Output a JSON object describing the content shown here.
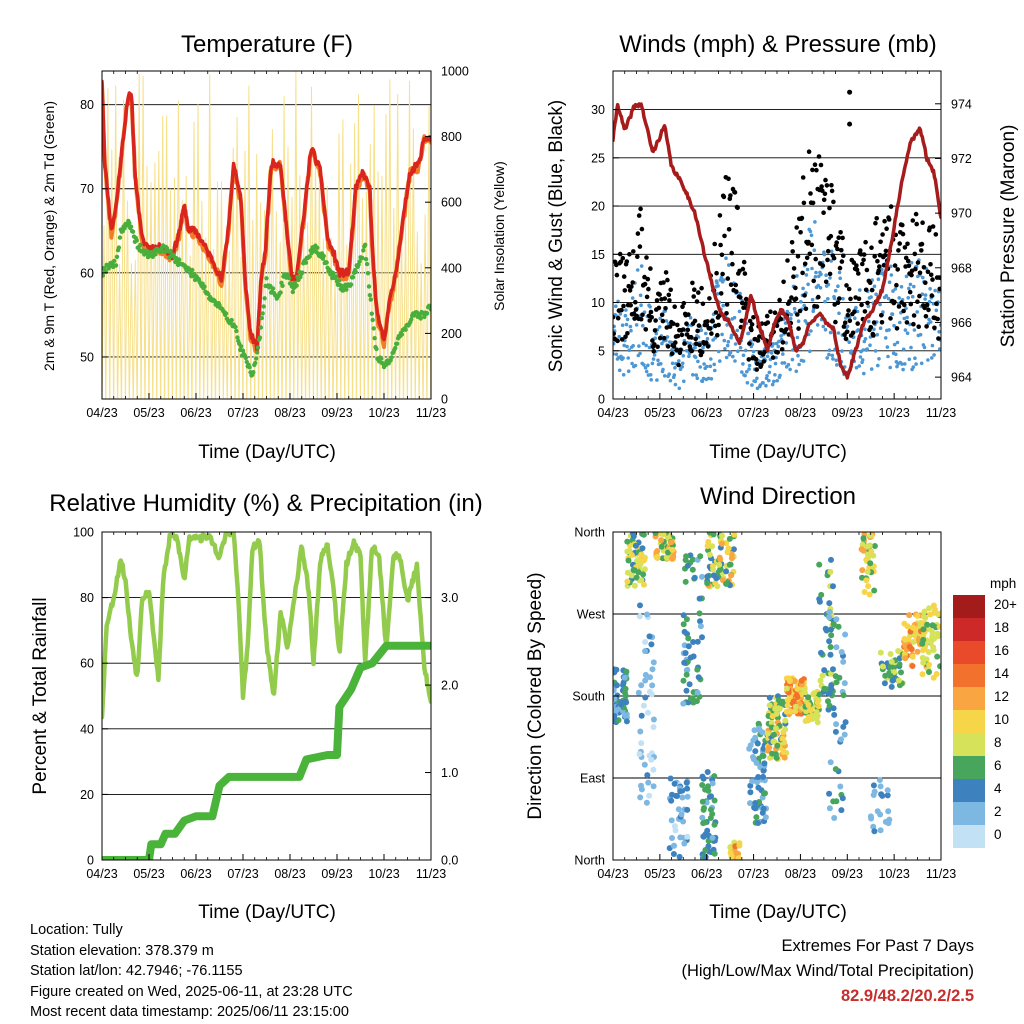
{
  "colors": {
    "temp_2m": "#d9251d",
    "temp_9m": "#f07d28",
    "dewpoint": "#49ae3b",
    "solar": "#f7e08a",
    "gust": "#000000",
    "wind": "#4d97d4",
    "pressure": "#a61c1c",
    "rh": "#93cb4c",
    "rain": "#4ab43a"
  },
  "panels": {
    "temperature": {
      "title": "Temperature (F)",
      "ylabel_left": "2m & 9m T (Red, Orange) & 2m Td (Green)",
      "ylabel_right": "Solar Insolation (Yellow)",
      "xlabel": "Time (Day/UTC)"
    },
    "winds": {
      "title": "Winds (mph) & Pressure (mb)",
      "ylabel_left": "Sonic Wind & Gust (Blue, Black)",
      "ylabel_right": "Station Pressure (Maroon)",
      "xlabel": "Time (Day/UTC)"
    },
    "humidity": {
      "title": "Relative Humidity (%) & Precipitation (in)",
      "ylabel_left": "Percent & Total Rainfall",
      "xlabel": "Time (Day/UTC)"
    },
    "direction": {
      "title": "Wind Direction",
      "ylabel_left": "Direction (Colored By Speed)",
      "xlabel": "Time (Day/UTC)"
    }
  },
  "chart_data": [
    {
      "id": "temperature",
      "type": "line",
      "x_ticks": [
        "04/23",
        "05/23",
        "06/23",
        "07/23",
        "08/23",
        "09/23",
        "10/23",
        "11/23"
      ],
      "xlim": [
        0,
        7
      ],
      "ylim": [
        45,
        84
      ],
      "y_ticks": [
        50,
        60,
        70,
        80
      ],
      "y2lim": [
        0,
        1000
      ],
      "y2_ticks": [
        0,
        200,
        400,
        600,
        800,
        1000
      ],
      "series": [
        {
          "key": "temp_2m",
          "axis": "left",
          "points": [
            [
              0,
              83
            ],
            [
              0.06,
              73
            ],
            [
              0.2,
              65
            ],
            [
              0.3,
              68
            ],
            [
              0.45,
              76
            ],
            [
              0.55,
              81
            ],
            [
              0.63,
              81
            ],
            [
              0.7,
              72
            ],
            [
              0.85,
              64
            ],
            [
              1.0,
              63
            ],
            [
              1.3,
              63
            ],
            [
              1.5,
              62
            ],
            [
              1.65,
              65
            ],
            [
              1.75,
              68
            ],
            [
              1.85,
              65
            ],
            [
              2.0,
              65
            ],
            [
              2.2,
              63
            ],
            [
              2.4,
              61
            ],
            [
              2.55,
              59
            ],
            [
              2.7,
              66
            ],
            [
              2.8,
              73
            ],
            [
              2.95,
              69
            ],
            [
              3.05,
              59
            ],
            [
              3.15,
              53
            ],
            [
              3.3,
              51
            ],
            [
              3.38,
              59
            ],
            [
              3.48,
              63
            ],
            [
              3.6,
              73
            ],
            [
              3.8,
              73
            ],
            [
              3.95,
              64
            ],
            [
              4.05,
              59
            ],
            [
              4.15,
              60
            ],
            [
              4.3,
              67
            ],
            [
              4.45,
              75
            ],
            [
              4.65,
              72
            ],
            [
              4.8,
              64
            ],
            [
              4.95,
              62
            ],
            [
              5.05,
              60
            ],
            [
              5.25,
              60
            ],
            [
              5.4,
              70
            ],
            [
              5.55,
              72
            ],
            [
              5.7,
              70
            ],
            [
              5.75,
              63
            ],
            [
              5.85,
              55
            ],
            [
              6.0,
              52
            ],
            [
              6.1,
              56
            ],
            [
              6.25,
              60
            ],
            [
              6.4,
              66
            ],
            [
              6.55,
              72
            ],
            [
              6.75,
              73
            ],
            [
              6.85,
              76
            ],
            [
              7,
              76
            ]
          ]
        },
        {
          "key": "dewpoint",
          "axis": "left",
          "points": [
            [
              0,
              60
            ],
            [
              0.15,
              61
            ],
            [
              0.3,
              61
            ],
            [
              0.4,
              65
            ],
            [
              0.55,
              66
            ],
            [
              0.7,
              64
            ],
            [
              0.8,
              63
            ],
            [
              1.0,
              62
            ],
            [
              1.3,
              63
            ],
            [
              1.5,
              62
            ],
            [
              1.7,
              61
            ],
            [
              1.9,
              60
            ],
            [
              2.1,
              59
            ],
            [
              2.3,
              57
            ],
            [
              2.5,
              56
            ],
            [
              2.6,
              55
            ],
            [
              2.8,
              54
            ],
            [
              2.95,
              51
            ],
            [
              3.1,
              49
            ],
            [
              3.2,
              48
            ],
            [
              3.35,
              52
            ],
            [
              3.5,
              59
            ],
            [
              3.6,
              58
            ],
            [
              3.75,
              57
            ],
            [
              3.9,
              60
            ],
            [
              4.05,
              58
            ],
            [
              4.15,
              59
            ],
            [
              4.3,
              61
            ],
            [
              4.5,
              63
            ],
            [
              4.7,
              62
            ],
            [
              4.85,
              60
            ],
            [
              5.0,
              59
            ],
            [
              5.15,
              58
            ],
            [
              5.3,
              59
            ],
            [
              5.45,
              61
            ],
            [
              5.6,
              63
            ],
            [
              5.75,
              55
            ],
            [
              5.85,
              50
            ],
            [
              6.0,
              49
            ],
            [
              6.15,
              50
            ],
            [
              6.3,
              52
            ],
            [
              6.5,
              54
            ],
            [
              6.65,
              55
            ],
            [
              6.85,
              55
            ],
            [
              7,
              56
            ]
          ]
        }
      ]
    },
    {
      "id": "winds",
      "type": "scatter",
      "x_ticks": [
        "04/23",
        "05/23",
        "06/23",
        "07/23",
        "08/23",
        "09/23",
        "10/23",
        "11/23"
      ],
      "xlim": [
        0,
        7
      ],
      "ylim": [
        0,
        34
      ],
      "y_ticks": [
        0,
        5,
        10,
        15,
        20,
        25,
        30
      ],
      "y2lim": [
        963.2,
        975.2
      ],
      "y2_ticks": [
        964,
        966,
        968,
        970,
        972,
        974
      ],
      "series": [
        {
          "key": "pressure",
          "axis": "right",
          "points": [
            [
              0,
              972.7
            ],
            [
              0.1,
              974
            ],
            [
              0.25,
              973
            ],
            [
              0.45,
              973.9
            ],
            [
              0.6,
              974
            ],
            [
              0.85,
              972.2
            ],
            [
              1.1,
              973.2
            ],
            [
              1.25,
              971.7
            ],
            [
              1.5,
              971
            ],
            [
              1.75,
              970
            ],
            [
              1.95,
              968.5
            ],
            [
              2.1,
              967.5
            ],
            [
              2.3,
              966.3
            ],
            [
              2.5,
              966
            ],
            [
              2.7,
              965.2
            ],
            [
              2.95,
              967
            ],
            [
              3.1,
              966
            ],
            [
              3.3,
              965
            ],
            [
              3.45,
              966
            ],
            [
              3.6,
              966.5
            ],
            [
              3.75,
              966
            ],
            [
              3.9,
              965
            ],
            [
              4.05,
              965.2
            ],
            [
              4.2,
              966
            ],
            [
              4.4,
              966.3
            ],
            [
              4.55,
              966
            ],
            [
              4.7,
              965.8
            ],
            [
              4.85,
              964.5
            ],
            [
              5.0,
              964
            ],
            [
              5.15,
              964.8
            ],
            [
              5.35,
              966
            ],
            [
              5.55,
              966.5
            ],
            [
              5.75,
              967.2
            ],
            [
              5.95,
              969
            ],
            [
              6.15,
              971
            ],
            [
              6.35,
              972.6
            ],
            [
              6.55,
              973.1
            ],
            [
              6.7,
              972
            ],
            [
              6.85,
              971.5
            ],
            [
              7,
              969.8
            ]
          ]
        }
      ]
    },
    {
      "id": "humidity",
      "type": "line",
      "x_ticks": [
        "04/23",
        "05/23",
        "06/23",
        "07/23",
        "08/23",
        "09/23",
        "10/23",
        "11/23"
      ],
      "xlim": [
        0,
        7
      ],
      "ylim": [
        0,
        100
      ],
      "y_ticks": [
        0,
        20,
        40,
        60,
        80,
        100
      ],
      "y2lim": [
        0,
        3.75
      ],
      "y2_ticks": [
        "0.0",
        "1.0",
        "2.0",
        "3.0"
      ],
      "series": [
        {
          "key": "rh",
          "axis": "left",
          "points": [
            [
              0,
              44
            ],
            [
              0.1,
              72
            ],
            [
              0.25,
              80
            ],
            [
              0.4,
              92
            ],
            [
              0.5,
              85
            ],
            [
              0.6,
              70
            ],
            [
              0.75,
              55
            ],
            [
              0.85,
              80
            ],
            [
              1.0,
              82
            ],
            [
              1.2,
              55
            ],
            [
              1.3,
              85
            ],
            [
              1.45,
              99
            ],
            [
              1.6,
              98
            ],
            [
              1.75,
              85
            ],
            [
              1.85,
              98
            ],
            [
              2.0,
              99
            ],
            [
              2.1,
              98
            ],
            [
              2.25,
              99
            ],
            [
              2.35,
              97
            ],
            [
              2.5,
              92
            ],
            [
              2.65,
              100
            ],
            [
              2.8,
              100
            ],
            [
              2.9,
              80
            ],
            [
              3.0,
              50
            ],
            [
              3.1,
              65
            ],
            [
              3.2,
              95
            ],
            [
              3.35,
              97
            ],
            [
              3.5,
              66
            ],
            [
              3.65,
              50
            ],
            [
              3.8,
              75
            ],
            [
              3.95,
              65
            ],
            [
              4.1,
              80
            ],
            [
              4.25,
              96
            ],
            [
              4.4,
              82
            ],
            [
              4.5,
              60
            ],
            [
              4.65,
              92
            ],
            [
              4.8,
              96
            ],
            [
              4.95,
              80
            ],
            [
              5.05,
              62
            ],
            [
              5.2,
              90
            ],
            [
              5.35,
              97
            ],
            [
              5.5,
              93
            ],
            [
              5.6,
              60
            ],
            [
              5.75,
              96
            ],
            [
              5.9,
              92
            ],
            [
              6.05,
              64
            ],
            [
              6.2,
              93
            ],
            [
              6.35,
              92
            ],
            [
              6.5,
              79
            ],
            [
              6.7,
              90
            ],
            [
              6.85,
              60
            ],
            [
              7,
              48
            ]
          ]
        },
        {
          "key": "rain",
          "axis": "right",
          "points": [
            [
              0,
              0
            ],
            [
              1.0,
              0
            ],
            [
              1.05,
              0.18
            ],
            [
              1.25,
              0.18
            ],
            [
              1.35,
              0.3
            ],
            [
              1.55,
              0.3
            ],
            [
              1.75,
              0.45
            ],
            [
              2.0,
              0.5
            ],
            [
              2.35,
              0.5
            ],
            [
              2.5,
              0.85
            ],
            [
              2.7,
              0.95
            ],
            [
              4.2,
              0.95
            ],
            [
              4.35,
              1.15
            ],
            [
              4.8,
              1.2
            ],
            [
              5.0,
              1.2
            ],
            [
              5.05,
              1.75
            ],
            [
              5.3,
              1.95
            ],
            [
              5.5,
              2.2
            ],
            [
              5.75,
              2.25
            ],
            [
              6.05,
              2.45
            ],
            [
              7,
              2.45
            ]
          ]
        }
      ]
    },
    {
      "id": "direction",
      "type": "scatter",
      "x_ticks": [
        "04/23",
        "05/23",
        "06/23",
        "07/23",
        "08/23",
        "09/23",
        "10/23",
        "11/23"
      ],
      "xlim": [
        0,
        7
      ],
      "ylim": [
        0,
        360
      ],
      "y_ticks": [
        "North",
        "East",
        "South",
        "West",
        "North"
      ],
      "legend_title": "mph",
      "legend_labels": [
        "20+",
        "18",
        "16",
        "14",
        "12",
        "10",
        "8",
        "6",
        "4",
        "2",
        "0"
      ],
      "legend_colors": [
        "#a31b1b",
        "#cc2928",
        "#e84a2a",
        "#f2712d",
        "#f8a542",
        "#f7d549",
        "#d6e35a",
        "#47a65c",
        "#3d82be",
        "#7db8e3",
        "#c3e1f5"
      ]
    }
  ],
  "info": {
    "location": "Location: Tully",
    "elevation": "Station elevation: 378.379 m",
    "latlon": "Station lat/lon: 42.7946; -76.1155",
    "created": "Figure created on Wed, 2025-06-11, at 23:28 UTC",
    "recent": "Most recent data timestamp: 2025/06/11 23:15:00"
  },
  "extremes": {
    "heading": "Extremes For Past 7 Days",
    "subheading": "(High/Low/Max Wind/Total Precipitation)",
    "values": "82.9/48.2/20.2/2.5"
  }
}
